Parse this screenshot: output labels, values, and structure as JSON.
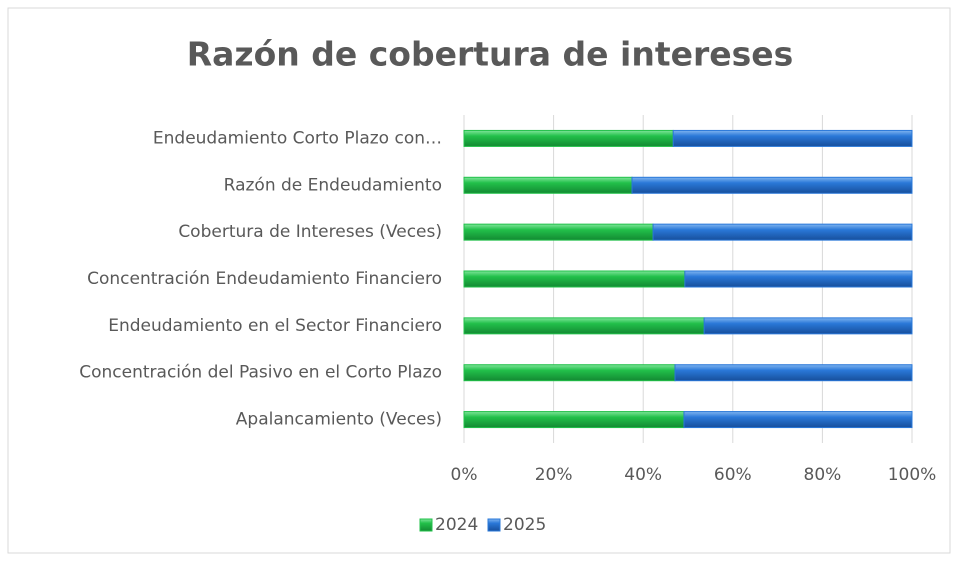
{
  "chart_data": {
    "type": "bar_stacked_horizontal",
    "title": "Razón de cobertura de intereses",
    "categories": [
      "Endeudamiento Corto Plazo con…",
      "Razón de Endeudamiento",
      "Cobertura de Intereses (Veces)",
      "Concentración Endeudamiento Financiero",
      "Endeudamiento en el Sector Financiero",
      "Concentración del Pasivo en el Corto Plazo",
      "Apalancamiento (Veces)"
    ],
    "series": [
      {
        "name": "2024",
        "color": "#22c04a",
        "values": [
          46.7,
          37.5,
          42.2,
          49.3,
          53.6,
          47.1,
          49.1
        ]
      },
      {
        "name": "2025",
        "color": "#2a78d8",
        "values": [
          53.3,
          62.5,
          57.8,
          50.7,
          46.4,
          52.9,
          50.9
        ]
      }
    ],
    "xlim": [
      0,
      100
    ],
    "xticks": [
      {
        "value": 0,
        "label": "0%"
      },
      {
        "value": 20,
        "label": "20%"
      },
      {
        "value": 40,
        "label": "40%"
      },
      {
        "value": 60,
        "label": "60%"
      },
      {
        "value": 80,
        "label": "80%"
      },
      {
        "value": 100,
        "label": "100%"
      }
    ],
    "grid": true,
    "legend": "bottom"
  }
}
